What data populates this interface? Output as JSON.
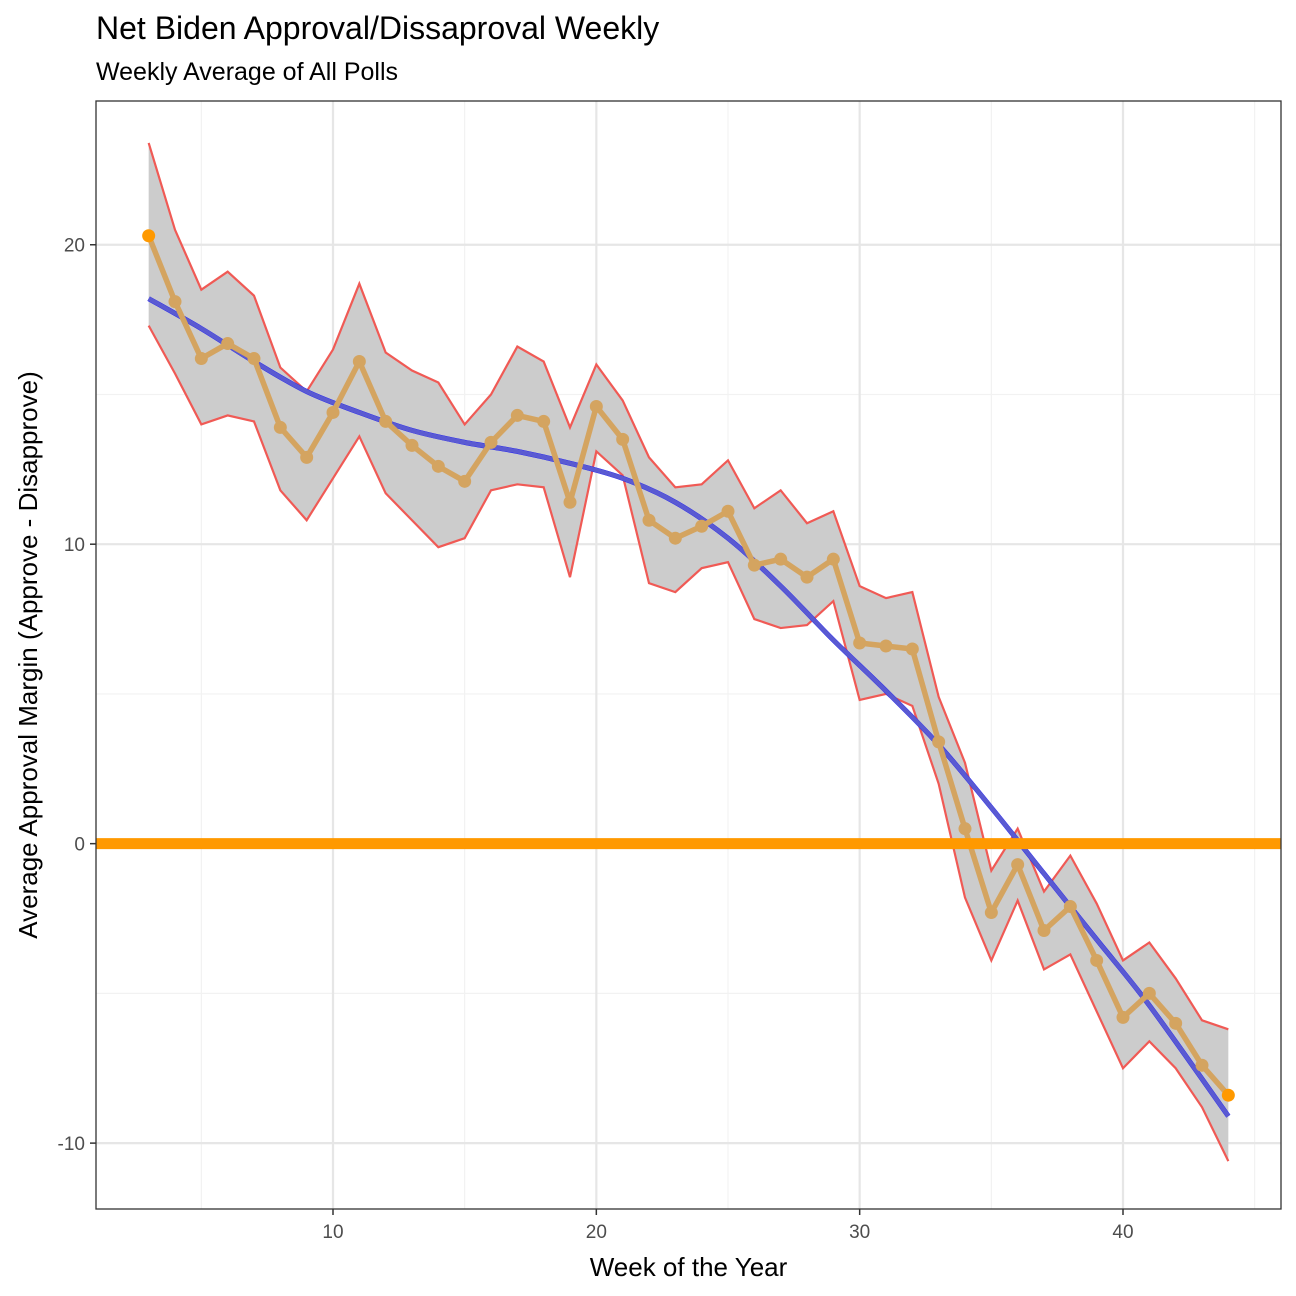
{
  "header": {
    "title": "Net Biden Approval/Dissaproval Weekly",
    "subtitle": "Weekly Average of All Polls"
  },
  "colors": {
    "band_fill": "#cccccc",
    "band_edge": "#f05a55",
    "series_line": "#d4a460",
    "endpoint": "#ff9900",
    "smooth_under": "#0000ff",
    "smooth": "#5a5ad2",
    "zero_line": "#ff9900",
    "grid_major": "#e6e6e6",
    "grid_minor": "#f2f2f2",
    "panel_border": "#333333"
  },
  "chart_data": {
    "type": "line",
    "xlabel": "Week of the Year",
    "ylabel": "Average Approval Margin (Approve - Disapprove)",
    "xlim": [
      1,
      46
    ],
    "ylim": [
      -12.2,
      24.8
    ],
    "x_ticks": [
      10,
      20,
      30,
      40
    ],
    "x_tick_labels": [
      "10",
      "20",
      "30",
      "40"
    ],
    "y_ticks": [
      -10,
      0,
      10,
      20
    ],
    "y_tick_labels": [
      "-10",
      "0",
      "10",
      "20"
    ],
    "grid": true,
    "reference_line": {
      "y": 0
    },
    "series": [
      {
        "x": [
          3,
          4,
          5,
          6,
          7,
          8,
          9,
          10,
          11,
          12,
          13,
          14,
          15,
          16,
          17,
          18,
          19,
          20,
          21,
          22,
          23,
          24,
          25,
          26,
          27,
          28,
          29,
          30,
          31,
          32,
          33,
          34,
          35,
          36,
          37,
          38,
          39,
          40,
          41,
          42,
          43,
          44
        ],
        "values": [
          20.3,
          18.1,
          16.2,
          16.7,
          16.2,
          13.9,
          12.9,
          14.4,
          16.1,
          14.1,
          13.3,
          12.6,
          12.1,
          13.4,
          14.3,
          14.1,
          11.4,
          14.6,
          13.5,
          10.8,
          10.2,
          10.6,
          11.1,
          9.3,
          9.5,
          8.9,
          9.5,
          6.7,
          6.6,
          6.5,
          3.4,
          0.5,
          -2.3,
          -0.7,
          -2.9,
          -2.1,
          -3.9,
          -5.8,
          -5.0,
          -6.0,
          -7.4,
          -8.4
        ]
      }
    ],
    "band": {
      "lower": [
        17.3,
        15.7,
        14.0,
        14.3,
        14.1,
        11.8,
        10.8,
        12.2,
        13.6,
        11.7,
        10.8,
        9.9,
        10.2,
        11.8,
        12.0,
        11.9,
        8.9,
        13.1,
        12.3,
        8.7,
        8.4,
        9.2,
        9.4,
        7.5,
        7.2,
        7.3,
        8.1,
        4.8,
        5.0,
        4.6,
        2.0,
        -1.8,
        -3.9,
        -1.9,
        -4.2,
        -3.7,
        -5.6,
        -7.5,
        -6.6,
        -7.5,
        -8.8,
        -10.6
      ],
      "upper": [
        23.4,
        20.5,
        18.5,
        19.1,
        18.3,
        15.9,
        15.1,
        16.5,
        18.7,
        16.4,
        15.8,
        15.4,
        14.0,
        15.0,
        16.6,
        16.1,
        13.9,
        16.0,
        14.8,
        12.9,
        11.9,
        12.0,
        12.8,
        11.2,
        11.8,
        10.7,
        11.1,
        8.6,
        8.2,
        8.4,
        4.9,
        2.7,
        -0.9,
        0.5,
        -1.6,
        -0.4,
        -2.0,
        -3.9,
        -3.3,
        -4.5,
        -5.9,
        -6.2
      ]
    },
    "smooth": {
      "x": [
        3,
        5,
        7,
        9,
        11,
        13,
        15,
        17,
        19,
        21,
        23,
        25,
        27,
        29,
        31,
        33,
        35,
        37,
        39,
        41,
        44
      ],
      "values": [
        18.2,
        17.2,
        16.1,
        15.1,
        14.4,
        13.8,
        13.4,
        13.1,
        12.7,
        12.2,
        11.4,
        10.2,
        8.6,
        6.8,
        5.1,
        3.3,
        1.2,
        -1.0,
        -3.2,
        -5.4,
        -9.1
      ]
    }
  }
}
